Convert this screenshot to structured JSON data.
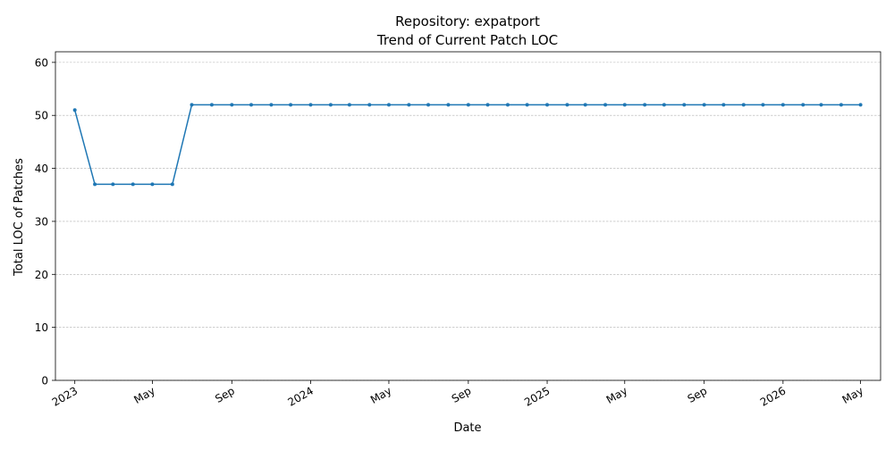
{
  "chart_data": {
    "type": "line",
    "title": "Repository: expatport",
    "subtitle": "Trend of Current Patch LOC",
    "xlabel": "Date",
    "ylabel": "Total LOC of Patches",
    "ylim": [
      0,
      62
    ],
    "yticks": [
      0,
      10,
      20,
      30,
      40,
      50,
      60
    ],
    "xlim": [
      "2022-12-02",
      "2026-06-01"
    ],
    "xticks": [
      {
        "date": "2023-01-01",
        "label": "2023"
      },
      {
        "date": "2023-05-01",
        "label": "May"
      },
      {
        "date": "2023-09-01",
        "label": "Sep"
      },
      {
        "date": "2024-01-01",
        "label": "2024"
      },
      {
        "date": "2024-05-01",
        "label": "May"
      },
      {
        "date": "2024-09-01",
        "label": "Sep"
      },
      {
        "date": "2025-01-01",
        "label": "2025"
      },
      {
        "date": "2025-05-01",
        "label": "May"
      },
      {
        "date": "2025-09-01",
        "label": "Sep"
      },
      {
        "date": "2026-01-01",
        "label": "2026"
      },
      {
        "date": "2026-05-01",
        "label": "May"
      }
    ],
    "grid": "horizontal-dashed",
    "line_color": "#1f77b4",
    "x": [
      "2023-01-01",
      "2023-02-01",
      "2023-03-01",
      "2023-04-01",
      "2023-05-01",
      "2023-06-01",
      "2023-07-01",
      "2023-08-01",
      "2023-09-01",
      "2023-10-01",
      "2023-11-01",
      "2023-12-01",
      "2024-01-01",
      "2024-02-01",
      "2024-03-01",
      "2024-04-01",
      "2024-05-01",
      "2024-06-01",
      "2024-07-01",
      "2024-08-01",
      "2024-09-01",
      "2024-10-01",
      "2024-11-01",
      "2024-12-01",
      "2025-01-01",
      "2025-02-01",
      "2025-03-01",
      "2025-04-01",
      "2025-05-01",
      "2025-06-01",
      "2025-07-01",
      "2025-08-01",
      "2025-09-01",
      "2025-10-01",
      "2025-11-01",
      "2025-12-01",
      "2026-01-01",
      "2026-02-01",
      "2026-03-01",
      "2026-04-01",
      "2026-05-01"
    ],
    "y": [
      51,
      37,
      37,
      37,
      37,
      37,
      52,
      52,
      52,
      52,
      52,
      52,
      52,
      52,
      52,
      52,
      52,
      52,
      52,
      52,
      52,
      52,
      52,
      52,
      52,
      52,
      52,
      52,
      52,
      52,
      52,
      52,
      52,
      52,
      52,
      52,
      52,
      52,
      52,
      52,
      52
    ]
  }
}
